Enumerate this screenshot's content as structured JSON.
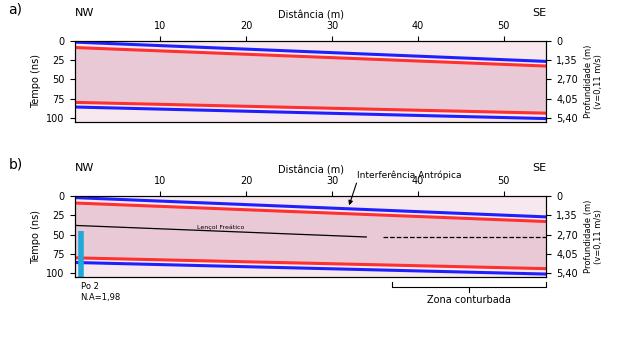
{
  "chart_data": [
    {
      "type": "radargram",
      "panel": "a)",
      "x_label": "Distância (m)",
      "y_label": "Tempo (ns)",
      "y2_label": "Profundidade (m)\n(v=0,11 m/s)",
      "corner_labels": [
        "NW",
        "SE"
      ],
      "xlim": [
        0,
        55
      ],
      "xticks": [
        10,
        20,
        30,
        40,
        50
      ],
      "ylim": [
        105,
        0
      ],
      "yticks": [
        0,
        25,
        50,
        75,
        100
      ],
      "y2lim": [
        5.67,
        0
      ],
      "y2ticks": [
        {
          "value": 0,
          "label": "0"
        },
        {
          "value": 1.35,
          "label": "1,35"
        },
        {
          "value": 2.7,
          "label": "2,70"
        },
        {
          "value": 4.05,
          "label": "4,05"
        },
        {
          "value": 5.4,
          "label": "5,40"
        }
      ],
      "reflectors": [
        {
          "color": "#2020ff",
          "x": [
            0,
            55
          ],
          "y": [
            2,
            27
          ]
        },
        {
          "color": "#ff3030",
          "x": [
            0,
            55
          ],
          "y": [
            9,
            33
          ]
        },
        {
          "color": "#ff3030",
          "x": [
            0,
            55
          ],
          "y": [
            80,
            94
          ]
        },
        {
          "color": "#2020ff",
          "x": [
            0,
            55
          ],
          "y": [
            86,
            101
          ]
        }
      ]
    },
    {
      "type": "radargram",
      "panel": "b)",
      "x_label": "Distância (m)",
      "y_label": "Tempo (ns)",
      "y2_label": "Profundidade (m)\n(v=0,11 m/s)",
      "corner_labels": [
        "NW",
        "SE"
      ],
      "xlim": [
        0,
        55
      ],
      "xticks": [
        10,
        20,
        30,
        40,
        50
      ],
      "ylim": [
        105,
        0
      ],
      "yticks": [
        0,
        25,
        50,
        75,
        100
      ],
      "y2lim": [
        5.67,
        0
      ],
      "y2ticks": [
        {
          "value": 0,
          "label": "0"
        },
        {
          "value": 1.35,
          "label": "1,35"
        },
        {
          "value": 2.7,
          "label": "2,70"
        },
        {
          "value": 4.05,
          "label": "4,05"
        },
        {
          "value": 5.4,
          "label": "5,40"
        }
      ],
      "reflectors": [
        {
          "color": "#2020ff",
          "x": [
            0,
            55
          ],
          "y": [
            2,
            27
          ]
        },
        {
          "color": "#ff3030",
          "x": [
            0,
            55
          ],
          "y": [
            9,
            33
          ]
        },
        {
          "color": "#ff3030",
          "x": [
            0,
            55
          ],
          "y": [
            80,
            94
          ]
        },
        {
          "color": "#2020ff",
          "x": [
            0,
            55
          ],
          "y": [
            86,
            101
          ]
        }
      ],
      "water_table": {
        "label": "Lençol Freático",
        "x": [
          0,
          34
        ],
        "y": [
          38,
          53
        ],
        "color": "#000000",
        "line_style": "solid"
      },
      "water_table_extension": {
        "x": [
          36,
          55
        ],
        "y": [
          53,
          53
        ],
        "color": "#000000",
        "line_style": "dashed"
      },
      "interference": {
        "label": "Interferência Antrópica",
        "x": 32,
        "y": 12
      },
      "well": {
        "label": "Po 2",
        "level_label": "N.A=1,98",
        "x": 0.7,
        "y": [
          45,
          105
        ],
        "color": "#1fa8d8"
      },
      "zone": {
        "label": "Zona conturbada",
        "x": [
          37,
          55
        ]
      }
    }
  ]
}
